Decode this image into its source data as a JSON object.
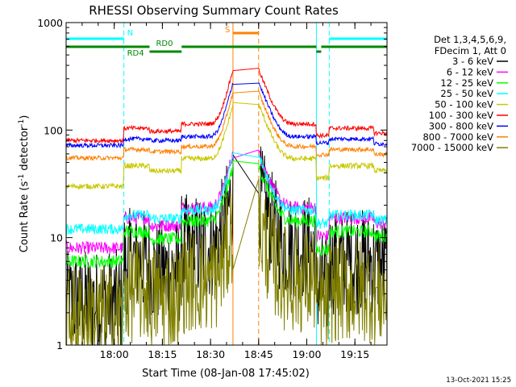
{
  "chart_data": {
    "type": "line",
    "title": "RHESSI Observing Summary Count Rates",
    "xlabel": "Start Time (08-Jan-08 17:45:02)",
    "ylabel_main": "Count Rate (s",
    "ylabel_sup1": "-1",
    "ylabel_mid": " detector",
    "ylabel_sup2": "-1",
    "ylabel_end": ")",
    "xlim": [
      0,
      100
    ],
    "ylim": [
      1,
      1000
    ],
    "yscale": "log",
    "x_ticks": [
      {
        "t": 15,
        "label": "18:00"
      },
      {
        "t": 30,
        "label": "18:15"
      },
      {
        "t": 45,
        "label": "18:30"
      },
      {
        "t": 60,
        "label": "18:45"
      },
      {
        "t": 75,
        "label": "19:00"
      },
      {
        "t": 90,
        "label": "19:15"
      }
    ],
    "y_ticks": [
      {
        "v": 1,
        "label": "1"
      },
      {
        "v": 10,
        "label": "10"
      },
      {
        "v": 100,
        "label": "100"
      },
      {
        "v": 1000,
        "label": "1000"
      }
    ],
    "legend": {
      "header": [
        "Det 1,3,4,5,6,9,",
        "FDecim 1, Att 0"
      ],
      "placement": "right"
    },
    "series": [
      {
        "name": "3 - 6 keV",
        "color": "#000000",
        "base": 2.5,
        "step": 2.4,
        "noise": 0.5
      },
      {
        "name": "6 - 12 keV",
        "color": "#ff00ff",
        "base": 8,
        "step": 1.9,
        "noise": 0.06
      },
      {
        "name": "12 - 25 keV",
        "color": "#00ff00",
        "base": 6,
        "step": 1.9,
        "noise": 0.06
      },
      {
        "name": "25 - 50 keV",
        "color": "#00ffff",
        "base": 12,
        "step": 1.35,
        "noise": 0.05
      },
      {
        "name": "50 - 100 keV",
        "color": "#c8c800",
        "base": 30,
        "step": 1.55,
        "noise": 0.025
      },
      {
        "name": "100 - 300 keV",
        "color": "#ff0000",
        "base": 80,
        "step": 1.3,
        "noise": 0.02
      },
      {
        "name": "300 - 800 keV",
        "color": "#0000ff",
        "base": 72,
        "step": 1.15,
        "noise": 0.02
      },
      {
        "name": "800 - 7000 keV",
        "color": "#ff8000",
        "base": 55,
        "step": 1.2,
        "noise": 0.02
      },
      {
        "name": "7000 - 15000 keV",
        "color": "#808000",
        "base": 1.8,
        "step": 1.8,
        "noise": 0.5
      }
    ],
    "flag_bars": [
      {
        "label": "N",
        "color": "#00ffff",
        "y": 48,
        "segments": [
          [
            0,
            18
          ],
          [
            82,
            100
          ]
        ]
      },
      {
        "label": "S",
        "color": "#ff8000",
        "y": 41,
        "segments": [
          [
            52,
            60
          ]
        ]
      },
      {
        "label": "RD0",
        "color": "#008800",
        "y": 58,
        "segments": [
          [
            0,
            26
          ],
          [
            36,
            78
          ],
          [
            79.5,
            100
          ]
        ]
      },
      {
        "label": "RD4",
        "color": "#008800",
        "y": 64,
        "segments": [
          [
            26,
            36
          ],
          [
            78,
            79.5
          ]
        ]
      }
    ],
    "vlines": [
      {
        "t": 18,
        "color": "#00ffff",
        "dashed": true
      },
      {
        "t": 82,
        "color": "#00ffff",
        "dashed": true
      },
      {
        "t": 78,
        "color": "#00ffff",
        "dashed": false
      },
      {
        "t": 52,
        "color": "#ff8000",
        "dashed": false
      },
      {
        "t": 60,
        "color": "#ff8000",
        "dashed": true
      },
      {
        "t": 100,
        "color": "#00ffff",
        "dashed": true
      }
    ]
  },
  "footer_date": "13-Oct-2021 15:25"
}
